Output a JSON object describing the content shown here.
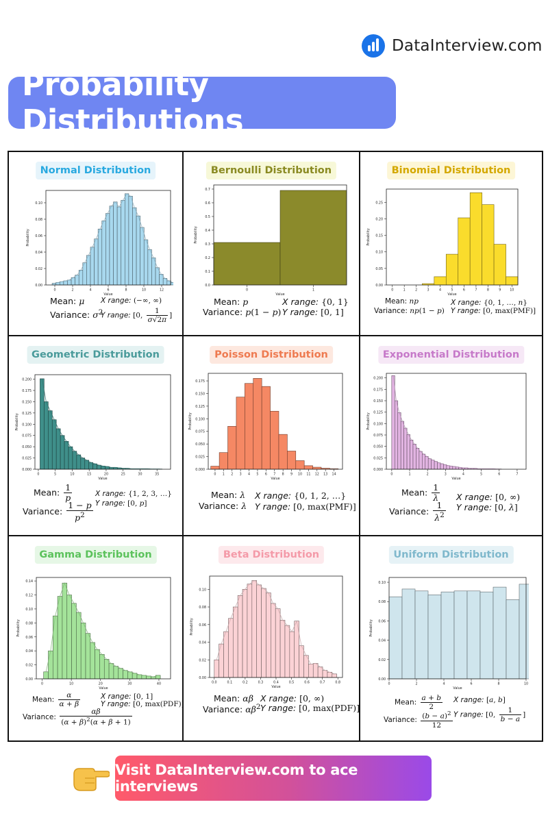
{
  "brand": {
    "name": "DataInterview.com",
    "icon": "bar-chart-icon"
  },
  "title": "Probability Distributions",
  "cta": {
    "label": "Visit DataInterview.com to ace interviews",
    "icon": "pointing-hand-icon"
  },
  "cells": [
    {
      "title": "Normal Distribution",
      "title_color": "#29a9e0",
      "title_bg": "#e6f4fb",
      "mean_label": "Mean:",
      "mean": "μ",
      "variance_label": "Variance:",
      "variance": "σ²",
      "x_range_label": "X range:",
      "x_range": "(−∞, ∞)",
      "y_range_label": "Y range:",
      "y_range": "[0, 1/(σ√(2π))]"
    },
    {
      "title": "Bernoulli Distribution",
      "title_color": "#8a8a22",
      "title_bg": "#f7f8d8",
      "mean_label": "Mean:",
      "mean": "p",
      "variance_label": "Variance:",
      "variance": "p(1 − p)",
      "x_range_label": "X range:",
      "x_range": "{0, 1}",
      "y_range_label": "Y range:",
      "y_range": "[0, 1]"
    },
    {
      "title": "Binomial Distribution",
      "title_color": "#d4a800",
      "title_bg": "#fdf6d6",
      "mean_label": "Mean:",
      "mean": "np",
      "variance_label": "Variance:",
      "variance": "np(1 − p)",
      "x_range_label": "X range:",
      "x_range": "{0, 1, …, n}",
      "y_range_label": "Y range:",
      "y_range": "[0, max(PMF)]"
    },
    {
      "title": "Geometric Distribution",
      "title_color": "#4a9b9b",
      "title_bg": "#e4f2f2",
      "mean_label": "Mean:",
      "mean": "1/p",
      "variance_label": "Variance:",
      "variance": "(1 − p)/p²",
      "x_range_label": "X range:",
      "x_range": "{1, 2, 3, …}",
      "y_range_label": "Y range:",
      "y_range": "[0, p]"
    },
    {
      "title": "Poisson Distribution",
      "title_color": "#ee7a50",
      "title_bg": "#fde8df",
      "mean_label": "Mean:",
      "mean": "λ",
      "variance_label": "Variance:",
      "variance": "λ",
      "x_range_label": "X range:",
      "x_range": "{0, 1, 2, …}",
      "y_range_label": "Y range:",
      "y_range": "[0, max(PMF)]"
    },
    {
      "title": "Exponential Distribution",
      "title_color": "#c679c9",
      "title_bg": "#f6e8f6",
      "mean_label": "Mean:",
      "mean": "1/λ",
      "variance_label": "Variance:",
      "variance": "1/λ²",
      "x_range_label": "X range:",
      "x_range": "[0, ∞)",
      "y_range_label": "Y range:",
      "y_range": "[0, λ]"
    },
    {
      "title": "Gamma Distribution",
      "title_color": "#5cc25c",
      "title_bg": "#e6f7e6",
      "mean_label": "Mean:",
      "mean": "α/(α + β)",
      "variance_label": "Variance:",
      "variance": "αβ/((α + β)²(α + β + 1))",
      "x_range_label": "X range:",
      "x_range": "[0, 1]",
      "y_range_label": "Y range:",
      "y_range": "[0, max(PDF)]"
    },
    {
      "title": "Beta Distribution",
      "title_color": "#f49aa8",
      "title_bg": "#fde9ec",
      "mean_label": "Mean:",
      "mean": "αβ",
      "variance_label": "Variance:",
      "variance": "αβ²",
      "x_range_label": "X range:",
      "x_range": "[0, ∞)",
      "y_range_label": "Y range:",
      "y_range": "[0, max(PDF)]"
    },
    {
      "title": "Uniform Distribution",
      "title_color": "#7fb8cc",
      "title_bg": "#e6f2f6",
      "mean_label": "Mean:",
      "mean": "(a + b)/2",
      "variance_label": "Variance:",
      "variance": "(b − a)²/12",
      "x_range_label": "X range:",
      "x_range": "[a, b]",
      "y_range_label": "Y range:",
      "y_range": "[0, 1/(b − a)]"
    }
  ],
  "chart_data": [
    {
      "type": "bar",
      "title": "",
      "xlabel": "Value",
      "ylabel": "Probability",
      "color": "#a8d8ee",
      "x_ticks": [
        0,
        2,
        4,
        6,
        8,
        10,
        12
      ],
      "y_ticks": [
        0.0,
        0.02,
        0.04,
        0.06,
        0.08,
        0.1
      ],
      "xlim": [
        -1,
        13
      ],
      "ylim": [
        0,
        0.115
      ],
      "bin_start": -0.3,
      "bin_width": 0.43,
      "curve": true,
      "values": [
        0.002,
        0.003,
        0.004,
        0.005,
        0.006,
        0.009,
        0.012,
        0.018,
        0.027,
        0.036,
        0.046,
        0.056,
        0.068,
        0.078,
        0.087,
        0.096,
        0.101,
        0.095,
        0.103,
        0.111,
        0.108,
        0.094,
        0.084,
        0.07,
        0.055,
        0.043,
        0.033,
        0.021,
        0.013,
        0.008,
        0.005,
        0.003
      ]
    },
    {
      "type": "bar",
      "title": "",
      "xlabel": "Value",
      "ylabel": "Probability",
      "color": "#8b8a2b",
      "x_ticks": [
        0,
        1
      ],
      "y_ticks": [
        0.0,
        0.1,
        0.2,
        0.3,
        0.4,
        0.5,
        0.6,
        0.7
      ],
      "xlim": [
        -0.5,
        1.5
      ],
      "ylim": [
        0,
        0.73
      ],
      "bin_start": -0.5,
      "bin_width": 1,
      "curve": false,
      "values": [
        0.31,
        0.69
      ]
    },
    {
      "type": "bar",
      "title": "",
      "xlabel": "Value",
      "ylabel": "Probability",
      "color": "#fadc2c",
      "x_ticks": [
        0,
        1,
        2,
        3,
        4,
        5,
        6,
        7,
        8,
        9,
        10
      ],
      "y_ticks": [
        0.0,
        0.05,
        0.1,
        0.15,
        0.2,
        0.25
      ],
      "xlim": [
        -0.5,
        10.5
      ],
      "ylim": [
        0,
        0.29
      ],
      "bin_start": -0.5,
      "bin_width": 1,
      "curve": false,
      "values": [
        0.0,
        0.0,
        0.0,
        0.004,
        0.025,
        0.093,
        0.203,
        0.279,
        0.243,
        0.123,
        0.025
      ]
    },
    {
      "type": "bar",
      "title": "",
      "xlabel": "Value",
      "ylabel": "Probability",
      "color": "#3f8f8a",
      "x_ticks": [
        0,
        5,
        10,
        15,
        20,
        25,
        30,
        35
      ],
      "y_ticks": [
        0.0,
        0.025,
        0.05,
        0.075,
        0.1,
        0.125,
        0.15,
        0.175,
        0.2
      ],
      "xlim": [
        -1,
        39
      ],
      "ylim": [
        0,
        0.21
      ],
      "bin_start": 0.5,
      "bin_width": 1.2,
      "curve": true,
      "values": [
        0.201,
        0.15,
        0.13,
        0.11,
        0.09,
        0.075,
        0.062,
        0.05,
        0.04,
        0.032,
        0.025,
        0.02,
        0.015,
        0.012,
        0.009,
        0.007,
        0.006,
        0.004,
        0.004,
        0.003,
        0.002,
        0.002,
        0.001,
        0.001,
        0.001,
        0.001,
        0.001,
        0.0005,
        0.0005,
        0.0005
      ]
    },
    {
      "type": "bar",
      "title": "",
      "xlabel": "Value",
      "ylabel": "Probability",
      "color": "#f58864",
      "x_ticks": [
        0,
        1,
        2,
        3,
        4,
        5,
        6,
        7,
        8,
        9,
        10,
        11,
        12,
        13,
        14
      ],
      "y_ticks": [
        0.0,
        0.025,
        0.05,
        0.075,
        0.1,
        0.125,
        0.15,
        0.175
      ],
      "xlim": [
        -0.8,
        15
      ],
      "ylim": [
        0,
        0.19
      ],
      "bin_start": -0.5,
      "bin_width": 1,
      "curve": false,
      "values": [
        0.006,
        0.033,
        0.085,
        0.143,
        0.17,
        0.18,
        0.164,
        0.115,
        0.069,
        0.036,
        0.017,
        0.007,
        0.004,
        0.002,
        0.001
      ]
    },
    {
      "type": "bar",
      "title": "",
      "xlabel": "Value",
      "ylabel": "Probability",
      "color": "#e2b4e2",
      "x_ticks": [
        0,
        1,
        2,
        3,
        4,
        5,
        6,
        7
      ],
      "y_ticks": [
        0.0,
        0.025,
        0.05,
        0.075,
        0.1,
        0.125,
        0.15,
        0.175,
        0.2
      ],
      "xlim": [
        -0.3,
        7.5
      ],
      "ylim": [
        0,
        0.21
      ],
      "bin_start": 0.0,
      "bin_width": 0.17,
      "curve": true,
      "values": [
        0.205,
        0.15,
        0.124,
        0.105,
        0.09,
        0.076,
        0.064,
        0.055,
        0.046,
        0.039,
        0.033,
        0.028,
        0.023,
        0.02,
        0.017,
        0.014,
        0.012,
        0.01,
        0.008,
        0.007,
        0.006,
        0.005,
        0.004,
        0.003,
        0.003,
        0.002,
        0.002,
        0.002,
        0.001,
        0.001,
        0.001,
        0.001,
        0.001,
        0.001,
        0.0005,
        0.0005
      ]
    },
    {
      "type": "bar",
      "title": "",
      "xlabel": "Value",
      "ylabel": "Probability",
      "color": "#a4e39a",
      "x_ticks": [
        0,
        10,
        20,
        30,
        40
      ],
      "y_ticks": [
        0.0,
        0.02,
        0.04,
        0.06,
        0.08,
        0.1,
        0.12,
        0.14
      ],
      "xlim": [
        -2,
        44
      ],
      "ylim": [
        0,
        0.145
      ],
      "bin_start": 0.5,
      "bin_width": 1.6,
      "curve": true,
      "values": [
        0.01,
        0.04,
        0.09,
        0.118,
        0.137,
        0.12,
        0.108,
        0.095,
        0.08,
        0.065,
        0.052,
        0.042,
        0.035,
        0.028,
        0.022,
        0.018,
        0.015,
        0.012,
        0.01,
        0.008,
        0.006,
        0.005,
        0.004,
        0.003,
        0.005
      ]
    },
    {
      "type": "bar",
      "title": "",
      "xlabel": "Value",
      "ylabel": "Probability",
      "color": "#fbd2d5",
      "x_ticks": [
        0.0,
        0.1,
        0.2,
        0.3,
        0.4,
        0.5,
        0.6,
        0.7,
        0.8
      ],
      "y_ticks": [
        0.0,
        0.02,
        0.04,
        0.06,
        0.08,
        0.1
      ],
      "xlim": [
        -0.03,
        0.83
      ],
      "ylim": [
        0,
        0.115
      ],
      "bin_start": 0.0,
      "bin_width": 0.0305,
      "curve": true,
      "values": [
        0.02,
        0.038,
        0.052,
        0.067,
        0.08,
        0.093,
        0.1,
        0.106,
        0.11,
        0.105,
        0.101,
        0.096,
        0.084,
        0.078,
        0.065,
        0.059,
        0.052,
        0.064,
        0.036,
        0.025,
        0.015,
        0.016,
        0.012,
        0.008,
        0.006,
        0.004
      ]
    },
    {
      "type": "bar",
      "title": "",
      "xlabel": "Value",
      "ylabel": "Probability",
      "color": "#cfe5ed",
      "x_ticks": [
        0,
        2,
        4,
        6,
        8,
        10
      ],
      "y_ticks": [
        0.0,
        0.02,
        0.04,
        0.06,
        0.08,
        0.1
      ],
      "xlim": [
        0,
        10
      ],
      "ylim": [
        0,
        0.105
      ],
      "bin_start": 0.0,
      "bin_width": 0.95,
      "curve": false,
      "values": [
        0.085,
        0.093,
        0.091,
        0.087,
        0.09,
        0.091,
        0.091,
        0.09,
        0.095,
        0.082,
        0.098
      ]
    }
  ]
}
